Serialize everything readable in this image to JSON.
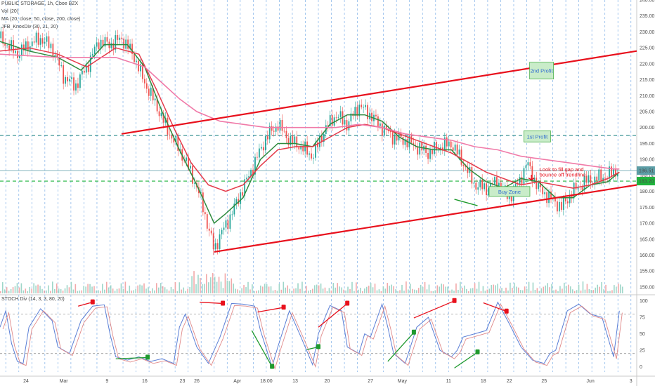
{
  "header": {
    "symbol_line": "PUBLIC STORAGE, 1h, Cboe BZX",
    "indicator_vol": "Vol (20)",
    "indicator_ma": "MA (20, close, 50, close, 200, close)",
    "indicator_knox": "JFB_KnoxDiv (30, 21, 20)",
    "stoch_label": "STOCH Div (14, 3, 3, 80, 20)"
  },
  "colors": {
    "ma20": "#2e8b3e",
    "ma50": "#e53a4a",
    "ma200": "#f07aa8",
    "trendline": "#e8101c",
    "stoch_k": "#5b7fd6",
    "stoch_d": "#e08a8a",
    "div_bear": "#e8101c",
    "div_bull": "#1f9a2e",
    "grid": "#7fb0e8",
    "price_box": "#5c9ea6",
    "entry_box": "#1fb33c"
  },
  "chart_data": [
    {
      "type": "candlestick",
      "title": "PUBLIC STORAGE, 1h, Cboe BZX",
      "xlabel": "",
      "ylabel": "",
      "ylim": [
        148,
        240
      ],
      "y_ticks": [
        150,
        155,
        160,
        165,
        170,
        175,
        180,
        185,
        190,
        195,
        200,
        205,
        210,
        215,
        220,
        225,
        230,
        235,
        240
      ],
      "x_ticks": [
        "24",
        "Mar",
        "9",
        "16",
        "23",
        "26",
        "Apr",
        "18:00",
        "13",
        "20",
        "27",
        "May",
        "11",
        "18",
        "22",
        "25",
        "Jun",
        "3"
      ],
      "grid": true,
      "price_path": [
        [
          0,
          228
        ],
        [
          3,
          223
        ],
        [
          5,
          226
        ],
        [
          7,
          228
        ],
        [
          9,
          225
        ],
        [
          11,
          216
        ],
        [
          13,
          213
        ],
        [
          15,
          219
        ],
        [
          17,
          227
        ],
        [
          19,
          226
        ],
        [
          21,
          228
        ],
        [
          23,
          223
        ],
        [
          25,
          214
        ],
        [
          27,
          207
        ],
        [
          29,
          199
        ],
        [
          31,
          193
        ],
        [
          33,
          186
        ],
        [
          35,
          176
        ],
        [
          36,
          168
        ],
        [
          37,
          162
        ],
        [
          38,
          166
        ],
        [
          40,
          173
        ],
        [
          42,
          181
        ],
        [
          44,
          189
        ],
        [
          46,
          197
        ],
        [
          48,
          201
        ],
        [
          50,
          196
        ],
        [
          52,
          194
        ],
        [
          54,
          191
        ],
        [
          56,
          199
        ],
        [
          58,
          204
        ],
        [
          60,
          201
        ],
        [
          62,
          207
        ],
        [
          64,
          204
        ],
        [
          66,
          200
        ],
        [
          68,
          197
        ],
        [
          70,
          196
        ],
        [
          72,
          194
        ],
        [
          74,
          192
        ],
        [
          76,
          194
        ],
        [
          78,
          195
        ],
        [
          80,
          189
        ],
        [
          82,
          182
        ],
        [
          84,
          181
        ],
        [
          86,
          183
        ],
        [
          88,
          178
        ],
        [
          90,
          184
        ],
        [
          91,
          189
        ],
        [
          93,
          181
        ],
        [
          95,
          178
        ],
        [
          97,
          175
        ],
        [
          99,
          180
        ],
        [
          101,
          183
        ],
        [
          103,
          184
        ],
        [
          105,
          185
        ],
        [
          107,
          187
        ]
      ],
      "moving_averages": [
        {
          "name": "MA 20",
          "path": [
            [
              0,
              227
            ],
            [
              5,
              224
            ],
            [
              10,
              222
            ],
            [
              14,
              218
            ],
            [
              18,
              226
            ],
            [
              22,
              226
            ],
            [
              25,
              219
            ],
            [
              28,
              205
            ],
            [
              31,
              193
            ],
            [
              34,
              182
            ],
            [
              37,
              170
            ],
            [
              39,
              173
            ],
            [
              42,
              178
            ],
            [
              45,
              190
            ],
            [
              48,
              195
            ],
            [
              51,
              195
            ],
            [
              54,
              194
            ],
            [
              57,
              201
            ],
            [
              60,
              204
            ],
            [
              63,
              204
            ],
            [
              66,
              202
            ],
            [
              69,
              197
            ],
            [
              72,
              194
            ],
            [
              75,
              193
            ],
            [
              78,
              193
            ],
            [
              81,
              187
            ],
            [
              84,
              183
            ],
            [
              87,
              181
            ],
            [
              90,
              184
            ],
            [
              93,
              183
            ],
            [
              96,
              178
            ],
            [
              99,
              178
            ],
            [
              102,
              182
            ],
            [
              105,
              183
            ],
            [
              107,
              186
            ]
          ]
        },
        {
          "name": "MA 50",
          "path": [
            [
              0,
              224
            ],
            [
              5,
              225
            ],
            [
              10,
              223
            ],
            [
              15,
              219
            ],
            [
              20,
              225
            ],
            [
              24,
              223
            ],
            [
              27,
              212
            ],
            [
              30,
              200
            ],
            [
              33,
              189
            ],
            [
              36,
              182
            ],
            [
              39,
              180
            ],
            [
              42,
              182
            ],
            [
              45,
              188
            ],
            [
              48,
              193
            ],
            [
              51,
              194
            ],
            [
              54,
              194
            ],
            [
              57,
              197
            ],
            [
              60,
              200
            ],
            [
              63,
              201
            ],
            [
              66,
              200
            ],
            [
              69,
              198
            ],
            [
              72,
              196
            ],
            [
              75,
              194
            ],
            [
              78,
              192
            ],
            [
              81,
              189
            ],
            [
              84,
              186
            ],
            [
              87,
              184
            ],
            [
              90,
              182
            ],
            [
              93,
              183
            ],
            [
              96,
              182
            ],
            [
              99,
              181
            ],
            [
              102,
              182
            ],
            [
              105,
              184
            ],
            [
              107,
              186
            ]
          ]
        },
        {
          "name": "MA 200",
          "path": [
            [
              0,
              223
            ],
            [
              10,
              222
            ],
            [
              20,
              222
            ],
            [
              25,
              219
            ],
            [
              28,
              214
            ],
            [
              31,
              209
            ],
            [
              34,
              205
            ],
            [
              38,
              202
            ],
            [
              42,
              201
            ],
            [
              46,
              200
            ],
            [
              50,
              200
            ],
            [
              54,
              200
            ],
            [
              58,
              200
            ],
            [
              62,
              201
            ],
            [
              66,
              200
            ],
            [
              70,
              198
            ],
            [
              74,
              197
            ],
            [
              78,
              196
            ],
            [
              82,
              194
            ],
            [
              86,
              193
            ],
            [
              90,
              191
            ],
            [
              94,
              190
            ],
            [
              98,
              189
            ],
            [
              102,
              188
            ],
            [
              106,
              187
            ],
            [
              107,
              187
            ]
          ]
        }
      ],
      "trendlines": [
        {
          "name": "upper channel",
          "points": [
            [
              21,
              198
            ],
            [
              110,
              224
            ]
          ]
        },
        {
          "name": "lower channel",
          "points": [
            [
              37,
              161
            ],
            [
              110,
              182
            ]
          ]
        }
      ],
      "horizontal_levels": [
        {
          "label": "186.51",
          "value": 186.51
        },
        {
          "label": "183.20",
          "value": 183.2
        },
        {
          "label": "",
          "value": 197.5
        }
      ],
      "annotations": [
        {
          "text": "2nd Profit",
          "value": 216
        },
        {
          "text": "1st Profit",
          "value": 197
        },
        {
          "text": "Buy Zone",
          "value": 179
        },
        {
          "text": "Look to fill gap and",
          "value": 186
        },
        {
          "text": "bounce off trendline",
          "value": 184
        }
      ]
    },
    {
      "type": "line",
      "title": "STOCH Div (14, 3, 3, 80, 20)",
      "ylim": [
        -8,
        105
      ],
      "y_ticks": [
        0,
        25,
        50,
        75,
        100
      ],
      "levels": [
        80,
        20
      ],
      "series": [
        {
          "name": "",
          "path": [
            [
              0,
              60
            ],
            [
              1,
              85
            ],
            [
              2,
              35
            ],
            [
              3,
              8
            ],
            [
              4,
              5
            ],
            [
              5,
              60
            ],
            [
              7,
              88
            ],
            [
              9,
              70
            ],
            [
              10,
              30
            ],
            [
              12,
              20
            ],
            [
              14,
              70
            ],
            [
              16,
              92
            ],
            [
              18,
              94
            ],
            [
              19,
              50
            ],
            [
              20,
              15
            ],
            [
              22,
              10
            ],
            [
              24,
              15
            ],
            [
              26,
              8
            ],
            [
              28,
              12
            ],
            [
              30,
              5
            ],
            [
              31,
              60
            ],
            [
              32,
              80
            ],
            [
              34,
              30
            ],
            [
              36,
              5
            ],
            [
              38,
              45
            ],
            [
              40,
              96
            ],
            [
              42,
              95
            ],
            [
              44,
              92
            ],
            [
              45,
              55
            ],
            [
              47,
              0
            ],
            [
              48,
              30
            ],
            [
              50,
              85
            ],
            [
              52,
              45
            ],
            [
              54,
              3
            ],
            [
              55,
              50
            ],
            [
              57,
              93
            ],
            [
              59,
              85
            ],
            [
              60,
              30
            ],
            [
              62,
              20
            ],
            [
              63,
              50
            ],
            [
              64,
              45
            ],
            [
              66,
              95
            ],
            [
              67,
              60
            ],
            [
              68,
              20
            ],
            [
              70,
              5
            ],
            [
              72,
              60
            ],
            [
              74,
              75
            ],
            [
              76,
              25
            ],
            [
              78,
              15
            ],
            [
              79,
              25
            ],
            [
              80,
              45
            ],
            [
              82,
              50
            ],
            [
              84,
              55
            ],
            [
              86,
              98
            ],
            [
              88,
              65
            ],
            [
              90,
              30
            ],
            [
              92,
              10
            ],
            [
              94,
              5
            ],
            [
              95,
              20
            ],
            [
              96,
              25
            ],
            [
              98,
              85
            ],
            [
              100,
              95
            ],
            [
              102,
              80
            ],
            [
              104,
              75
            ],
            [
              106,
              15
            ],
            [
              107,
              85
            ]
          ]
        }
      ]
    }
  ]
}
